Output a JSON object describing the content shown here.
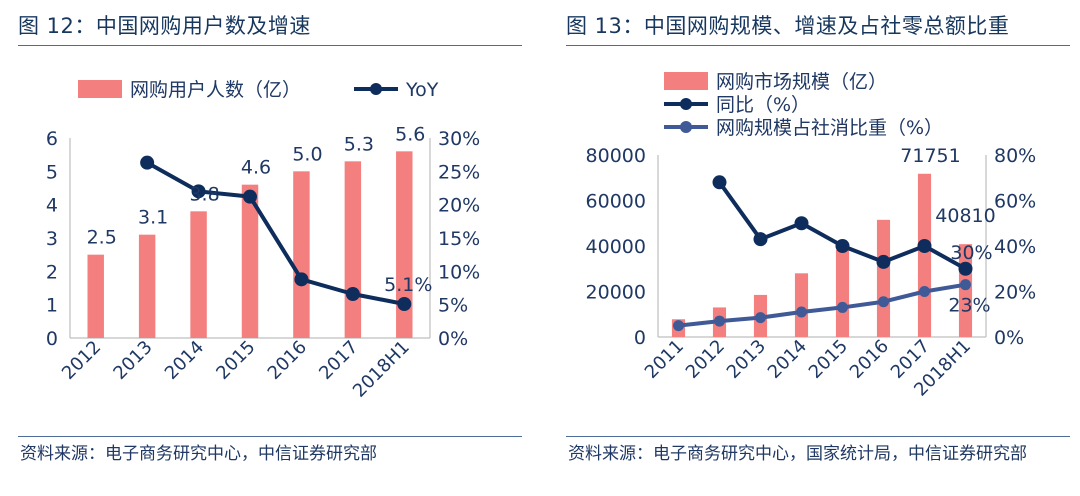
{
  "colors": {
    "bar": "#f47f7f",
    "line": "#0e2d5c",
    "line2": "#3f5a96",
    "text": "#1f3864"
  },
  "left": {
    "title": "图 12：中国网购用户数及增速",
    "source": "资料来源：电子商务研究中心，中信证券研究部"
  },
  "right": {
    "title": "图 13：中国网购规模、增速及占社零总额比重",
    "source": "资料来源：电子商务研究中心，国家统计局，中信证券研究部"
  },
  "chart_data": [
    {
      "type": "bar",
      "categories": [
        "2012",
        "2013",
        "2014",
        "2015",
        "2016",
        "2017",
        "2018H1"
      ],
      "series": [
        {
          "name": "网购用户人数（亿）",
          "type": "bar",
          "axis": "left",
          "values": [
            2.5,
            3.1,
            3.8,
            4.6,
            5.0,
            5.3,
            5.6
          ]
        },
        {
          "name": "YoY",
          "type": "line",
          "axis": "right",
          "values": [
            null,
            26.3,
            22.0,
            21.2,
            8.8,
            6.6,
            5.1
          ]
        }
      ],
      "data_labels": [
        {
          "series": 0,
          "index": 0,
          "text": "2.5"
        },
        {
          "series": 0,
          "index": 1,
          "text": "3.1"
        },
        {
          "series": 0,
          "index": 2,
          "text": "3.8"
        },
        {
          "series": 0,
          "index": 3,
          "text": "4.6"
        },
        {
          "series": 0,
          "index": 4,
          "text": "5.0"
        },
        {
          "series": 0,
          "index": 5,
          "text": "5.3"
        },
        {
          "series": 0,
          "index": 6,
          "text": "5.6"
        },
        {
          "series": 1,
          "index": 6,
          "text": "5.1%"
        }
      ],
      "ylim": [
        0,
        6
      ],
      "yticks": [
        "0",
        "1",
        "2",
        "3",
        "4",
        "5",
        "6"
      ],
      "y2lim": [
        0,
        30
      ],
      "y2ticks": [
        "0%",
        "5%",
        "10%",
        "15%",
        "20%",
        "25%",
        "30%"
      ],
      "legend": "top",
      "grid": false
    },
    {
      "type": "bar",
      "categories": [
        "2011",
        "2012",
        "2013",
        "2014",
        "2015",
        "2016",
        "2017",
        "2018H1"
      ],
      "series": [
        {
          "name": "网购市场规模（亿）",
          "type": "bar",
          "axis": "left",
          "values": [
            7800,
            13000,
            18500,
            28000,
            38300,
            51500,
            71751,
            40810
          ]
        },
        {
          "name": "同比（%）",
          "type": "line",
          "axis": "right",
          "values": [
            null,
            68,
            43,
            50,
            40,
            33,
            40,
            30
          ]
        },
        {
          "name": "网购规模占社消比重（%）",
          "type": "line",
          "axis": "right",
          "values": [
            5,
            7,
            8.5,
            11,
            13,
            15.5,
            20,
            23
          ]
        }
      ],
      "data_labels": [
        {
          "series": 0,
          "index": 6,
          "text": "71751"
        },
        {
          "series": 0,
          "index": 7,
          "text": "40810"
        },
        {
          "series": 1,
          "index": 7,
          "text": "30%"
        },
        {
          "series": 2,
          "index": 7,
          "text": "23%"
        }
      ],
      "ylim": [
        0,
        80000
      ],
      "yticks": [
        "0",
        "20000",
        "40000",
        "60000",
        "80000"
      ],
      "y2lim": [
        0,
        80
      ],
      "y2ticks": [
        "0%",
        "20%",
        "40%",
        "60%",
        "80%"
      ],
      "legend": "top-left",
      "grid": false
    }
  ]
}
